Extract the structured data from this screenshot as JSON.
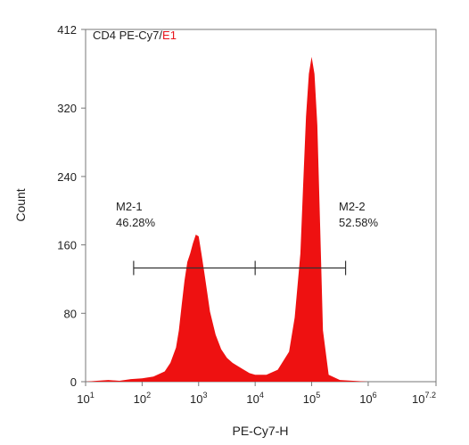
{
  "chart_data": {
    "type": "area",
    "title_prefix": "CD4 PE-Cy7/",
    "title_suffix": "E1",
    "title_suffix_color": "#e8141b",
    "xlabel": "PE-Cy7-H",
    "ylabel": "Count",
    "x_scale": "log10",
    "xlim": [
      1,
      7.2
    ],
    "ylim": [
      0,
      412
    ],
    "x_ticks": [
      {
        "v": 1,
        "base": "10",
        "exp": "1"
      },
      {
        "v": 2,
        "base": "10",
        "exp": "2"
      },
      {
        "v": 3,
        "base": "10",
        "exp": "3"
      },
      {
        "v": 4,
        "base": "10",
        "exp": "4"
      },
      {
        "v": 5,
        "base": "10",
        "exp": "5"
      },
      {
        "v": 6,
        "base": "10",
        "exp": "6"
      },
      {
        "v": 7.2,
        "base": "10",
        "exp": "7.2"
      }
    ],
    "y_ticks": [
      {
        "v": 0,
        "label": "0"
      },
      {
        "v": 80,
        "label": "80"
      },
      {
        "v": 160,
        "label": "160"
      },
      {
        "v": 240,
        "label": "240"
      },
      {
        "v": 320,
        "label": "320"
      },
      {
        "v": 412,
        "label": "412"
      }
    ],
    "fill_color": "#ee1111",
    "series": [
      {
        "x": [
          1.0,
          1.2,
          1.4,
          1.6,
          1.8,
          2.0,
          2.2,
          2.4,
          2.5,
          2.6,
          2.65,
          2.7,
          2.75,
          2.8,
          2.85,
          2.9,
          2.95,
          3.0,
          3.05,
          3.1,
          3.15,
          3.2,
          3.3,
          3.4,
          3.5,
          3.6,
          3.7,
          3.8,
          3.9,
          4.0,
          4.2,
          4.4,
          4.6,
          4.7,
          4.8,
          4.85,
          4.9,
          4.95,
          5.0,
          5.05,
          5.1,
          5.15,
          5.2,
          5.3,
          5.5,
          6.0,
          7.2
        ],
        "y": [
          0,
          1,
          2,
          1,
          3,
          4,
          6,
          12,
          22,
          40,
          60,
          90,
          118,
          140,
          150,
          162,
          172,
          170,
          150,
          128,
          105,
          82,
          55,
          38,
          28,
          22,
          18,
          14,
          10,
          8,
          8,
          14,
          35,
          75,
          150,
          230,
          310,
          360,
          380,
          360,
          300,
          180,
          60,
          8,
          2,
          0,
          0
        ]
      }
    ],
    "gate": {
      "left_x": 1.85,
      "mid_x": 4.0,
      "right_x": 5.6,
      "y": 133,
      "left_name": "M2-1",
      "left_pct": "46.28%",
      "right_name": "M2-2",
      "right_pct": "52.58%"
    }
  }
}
